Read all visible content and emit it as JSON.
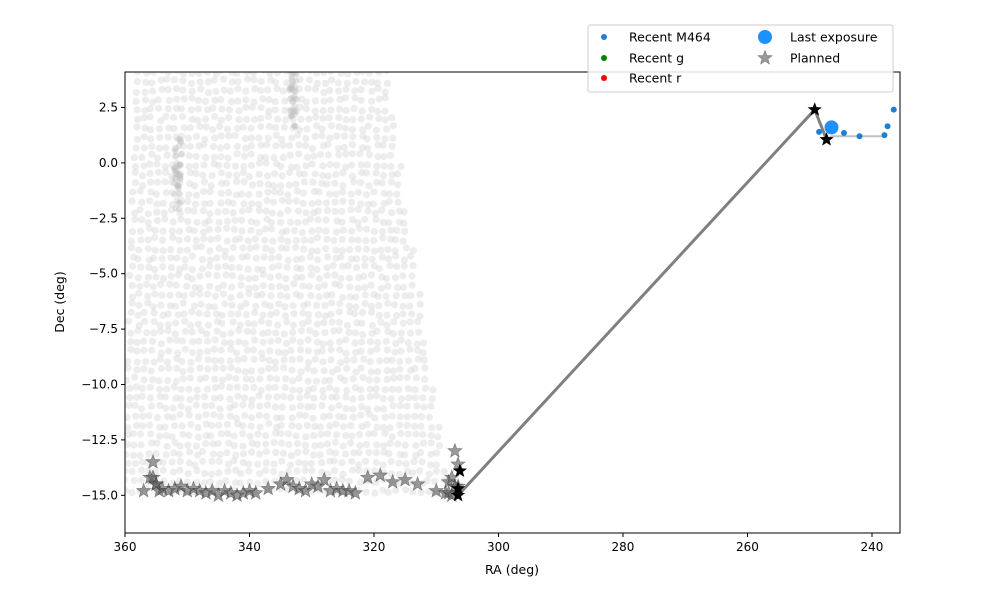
{
  "chart_data": {
    "type": "scatter",
    "xlabel": "RA (deg)",
    "ylabel": "Dec (deg)",
    "xlim": [
      360,
      235.5
    ],
    "ylim": [
      -16.7,
      4.1
    ],
    "x_inverted": true,
    "xticks": [
      360,
      340,
      320,
      300,
      280,
      260,
      240
    ],
    "yticks": [
      2.5,
      0.0,
      -2.5,
      -5.0,
      -7.5,
      -10.0,
      -12.5,
      -15.0
    ],
    "ytick_labels": [
      "2.5",
      "0.0",
      "−2.5",
      "−5.0",
      "−7.5",
      "−10.0",
      "−12.5",
      "−15.0"
    ],
    "grid": false,
    "legend_position": "top-right, above plot",
    "footprint_background": {
      "description": "faint grey circles covering survey area",
      "color": "#d8d8d8",
      "ra_range_at_top": [
        358,
        318
      ],
      "ra_range_at_bottom": [
        360,
        308
      ],
      "dec_range": [
        -15,
        4.1
      ]
    },
    "series": [
      {
        "name": "Recent M464",
        "color": "#1f7fd6",
        "marker": "dot",
        "x": [
          248.5,
          244.5,
          242.0,
          238.0,
          237.5,
          236.5
        ],
        "y": [
          1.4,
          1.35,
          1.2,
          1.25,
          1.65,
          2.4
        ]
      },
      {
        "name": "Recent g",
        "color": "#008000",
        "marker": "dot",
        "x": [],
        "y": []
      },
      {
        "name": "Recent r",
        "color": "#ff0000",
        "marker": "dot",
        "x": [],
        "y": []
      },
      {
        "name": "Last exposure",
        "color": "#1e90ff",
        "marker": "big-dot",
        "x": [
          246.5
        ],
        "y": [
          1.6
        ]
      },
      {
        "name": "Planned",
        "color": "#555555",
        "marker": "star",
        "x": [
          357,
          355.5,
          355,
          354.5,
          354,
          353,
          352,
          351,
          350,
          349,
          348,
          347,
          346,
          345,
          344,
          343,
          342,
          341,
          340,
          339,
          337,
          335,
          334,
          333,
          332,
          331,
          330,
          329,
          328,
          327,
          326,
          325,
          324,
          323,
          321,
          319,
          317,
          315,
          313,
          310,
          308.5,
          308,
          307.5,
          307,
          306.5,
          355.5,
          355,
          356,
          307,
          307.5,
          306.5,
          308
        ],
        "y": [
          -14.8,
          -14.2,
          -14.5,
          -14.8,
          -14.7,
          -14.8,
          -14.7,
          -14.6,
          -14.8,
          -14.7,
          -14.8,
          -14.9,
          -14.8,
          -15.0,
          -14.8,
          -14.9,
          -15.0,
          -14.9,
          -14.8,
          -14.9,
          -14.7,
          -14.5,
          -14.3,
          -14.6,
          -14.7,
          -14.8,
          -14.5,
          -14.6,
          -14.3,
          -14.8,
          -14.7,
          -14.8,
          -14.8,
          -14.9,
          -14.2,
          -14.1,
          -14.4,
          -14.3,
          -14.5,
          -14.8,
          -14.9,
          -14.4,
          -14.2,
          -13.0,
          -13.6,
          -13.5,
          -14.5,
          -14.2,
          -14.6,
          -15.0,
          -14.6,
          -14.9
        ]
      },
      {
        "name": "",
        "color": "#000000",
        "marker": "star-black",
        "x": [
          306.5,
          306.5,
          306.2,
          249.2,
          247.3
        ],
        "y": [
          -14.7,
          -15.0,
          -13.9,
          2.4,
          1.05
        ]
      }
    ],
    "path_lines": [
      {
        "color": "#808080",
        "width": 3,
        "x": [
          306.5,
          249.2,
          247.3
        ],
        "y": [
          -15.0,
          2.4,
          1.05
        ]
      },
      {
        "color": "#c0c0c0",
        "width": 2,
        "x": [
          247.3,
          246.5,
          244.5,
          242.0,
          238.0
        ],
        "y": [
          1.05,
          1.2,
          1.2,
          1.2,
          1.2
        ]
      }
    ]
  }
}
